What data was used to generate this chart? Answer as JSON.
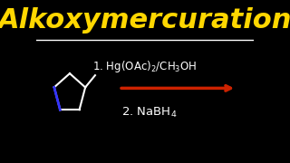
{
  "background_color": "#000000",
  "title": "Alkoxymercuration",
  "title_color": "#FFD700",
  "title_fontsize": 22,
  "line_color": "#FFFFFF",
  "reagent1": "1. Hg(OAc)",
  "reagent1_sub": "2",
  "reagent1_rest": "/CH",
  "reagent1_sub2": "3",
  "reagent1_end": "OH",
  "reagent2": "2. NaBH",
  "reagent2_sub": "4",
  "arrow_color": "#CC2200",
  "white": "#FFFFFF",
  "blue": "#3333FF"
}
